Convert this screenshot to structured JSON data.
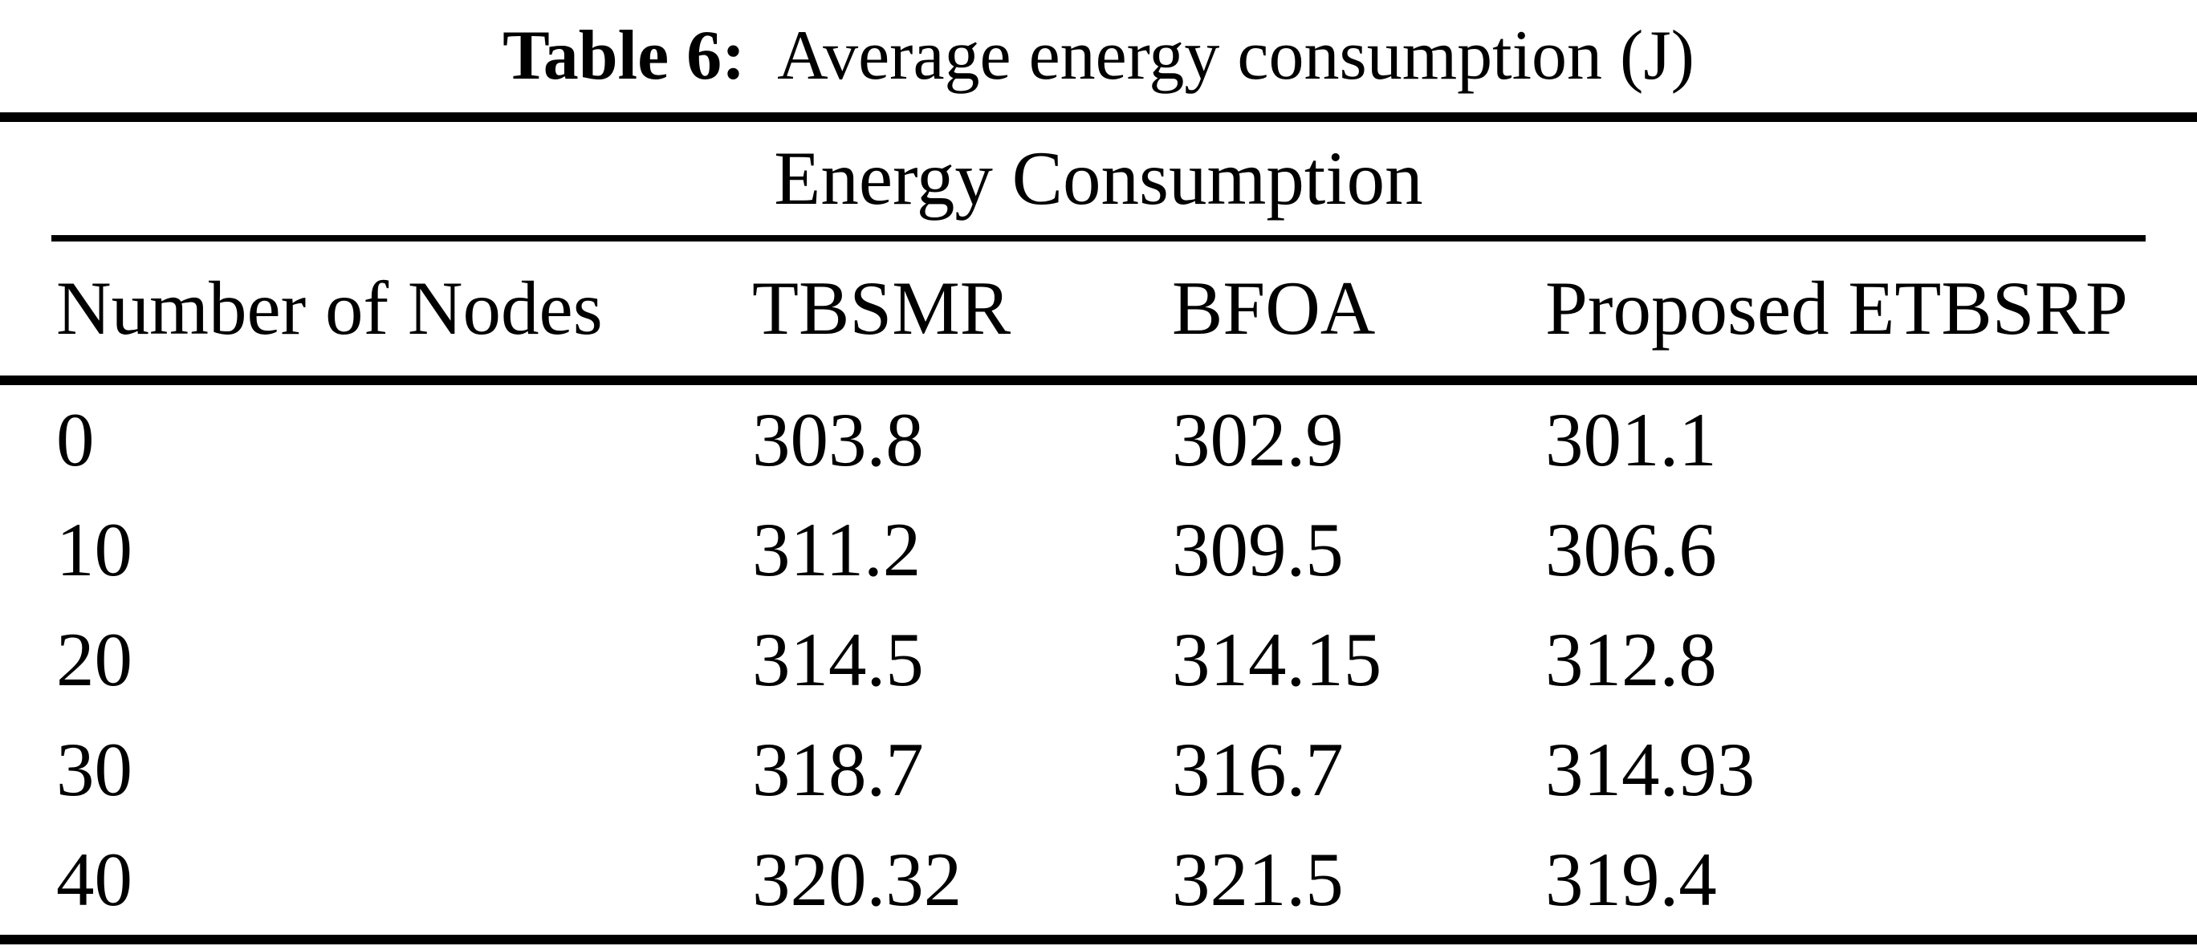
{
  "caption": {
    "label": "Table 6:",
    "text": "Average energy consumption (J)"
  },
  "table": {
    "span_header": "Energy Consumption",
    "columns": [
      "Number of Nodes",
      "TBSMR",
      "BFOA",
      "Proposed ETBSRP"
    ],
    "rows": [
      [
        "0",
        "303.8",
        "302.9",
        "301.1"
      ],
      [
        "10",
        "311.2",
        "309.5",
        "306.6"
      ],
      [
        "20",
        "314.5",
        "314.15",
        "312.8"
      ],
      [
        "30",
        "318.7",
        "316.7",
        "314.93"
      ],
      [
        "40",
        "320.32",
        "321.5",
        "319.4"
      ]
    ]
  },
  "chart_data": {
    "type": "table",
    "title": "Table 6: Average energy consumption (J)",
    "span_header": "Energy Consumption",
    "categories": [
      0,
      10,
      20,
      30,
      40
    ],
    "xlabel": "Number of Nodes",
    "series": [
      {
        "name": "TBSMR",
        "values": [
          303.8,
          311.2,
          314.5,
          318.7,
          320.32
        ]
      },
      {
        "name": "BFOA",
        "values": [
          302.9,
          309.5,
          314.15,
          316.7,
          321.5
        ]
      },
      {
        "name": "Proposed ETBSRP",
        "values": [
          301.1,
          306.6,
          312.8,
          314.93,
          319.4
        ]
      }
    ]
  },
  "colors": {
    "text": "#000000",
    "rule": "#000000",
    "background": "#ffffff"
  }
}
